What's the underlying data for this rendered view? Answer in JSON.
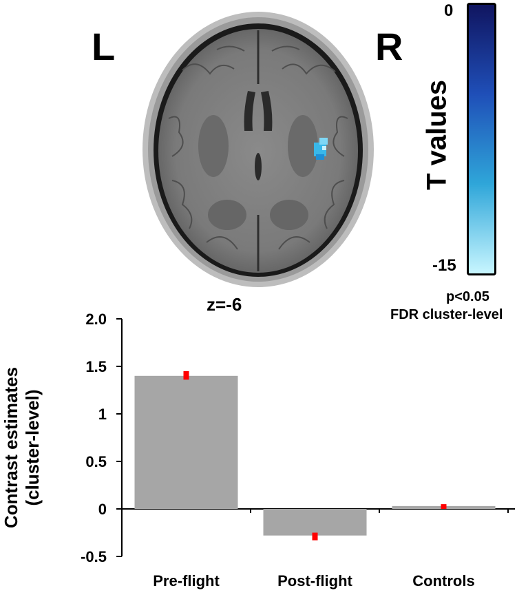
{
  "brain": {
    "left_label": "L",
    "right_label": "R",
    "slice_label": "z=-6"
  },
  "colorbar": {
    "title": "T values",
    "max_label": "0",
    "min_label": "-15",
    "colors": [
      "#101560",
      "#1f4fb8",
      "#2fa6d9",
      "#c8f6ff"
    ],
    "threshold_line1": "p<0.05",
    "threshold_line2": "FDR cluster-level"
  },
  "chart_data": {
    "type": "bar",
    "categories": [
      "Pre-flight",
      "Post-flight",
      "Controls"
    ],
    "values": [
      1.4,
      -0.28,
      0.03
    ],
    "errors": [
      [
        1.36,
        1.45
      ],
      [
        -0.33,
        -0.25
      ],
      [
        0.0,
        0.05
      ]
    ],
    "ylabel_lines": [
      "Contrast estimates",
      "(cluster-level)"
    ],
    "ylim": [
      -0.5,
      2.0
    ],
    "yticks": [
      {
        "value": -0.5,
        "label": "-0.5"
      },
      {
        "value": 0,
        "label": "0"
      },
      {
        "value": 0.5,
        "label": "0.5"
      },
      {
        "value": 1,
        "label": "1"
      },
      {
        "value": 1.5,
        "label": "1.5"
      },
      {
        "value": 2,
        "label": "2.0"
      }
    ],
    "bar_color": "#a6a6a6",
    "error_color": "#ff0000",
    "grid": false,
    "legend": "none"
  }
}
